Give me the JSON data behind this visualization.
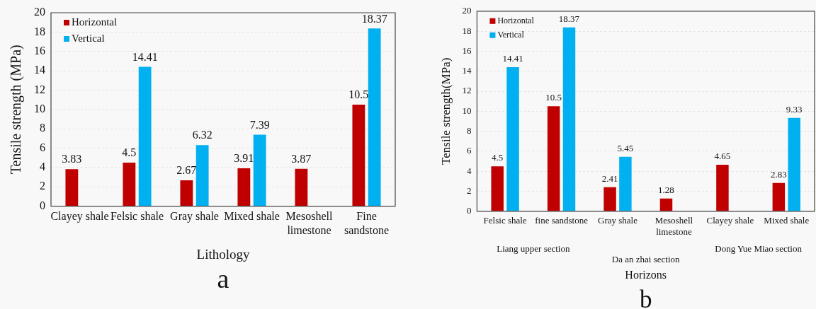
{
  "chart_data": [
    {
      "type": "bar",
      "xlabel": "Lithology",
      "ylabel": "Tensile strength (MPa)",
      "categories": [
        "Clayey shale",
        "Felsic shale",
        "Gray shale",
        "Mixed shale",
        "Mesoshell\nlimestone",
        "Fine\nsandstone"
      ],
      "series": [
        {
          "name": "Horizontal",
          "color": "#c00000",
          "values": [
            3.83,
            4.5,
            2.67,
            3.91,
            3.87,
            10.5
          ]
        },
        {
          "name": "Vertical",
          "color": "#00b0f0",
          "values": [
            null,
            14.41,
            6.32,
            7.39,
            null,
            18.37
          ]
        }
      ],
      "ylim": [
        0,
        20
      ],
      "yticks": [
        0,
        2,
        4,
        6,
        8,
        10,
        12,
        14,
        16,
        18,
        20
      ],
      "grid": "y",
      "legend": "top left",
      "data_labels": true,
      "annotations": [
        "a"
      ]
    },
    {
      "type": "bar",
      "xlabel": "Horizons",
      "ylabel": "Tensile strength(MPa)",
      "categories": [
        "Felsic shale",
        "fine sandstone",
        "Gray shale",
        "Mesoshell\nlimestone",
        "Clayey shale",
        "Mixed shale"
      ],
      "series": [
        {
          "name": "Horizontal",
          "color": "#c00000",
          "values": [
            4.5,
            10.5,
            2.41,
            1.28,
            4.65,
            2.83
          ]
        },
        {
          "name": "Vertical",
          "color": "#00b0f0",
          "values": [
            14.41,
            18.37,
            5.45,
            null,
            null,
            9.33
          ]
        }
      ],
      "ylim": [
        0,
        20
      ],
      "yticks": [
        0,
        2,
        4,
        6,
        8,
        10,
        12,
        14,
        16,
        18,
        20
      ],
      "grid": "y",
      "legend": "top left",
      "data_labels": true,
      "annotations": [
        "Liang upper section",
        "Da an zhai section",
        "Dong Yue Miao section",
        "b"
      ]
    }
  ]
}
